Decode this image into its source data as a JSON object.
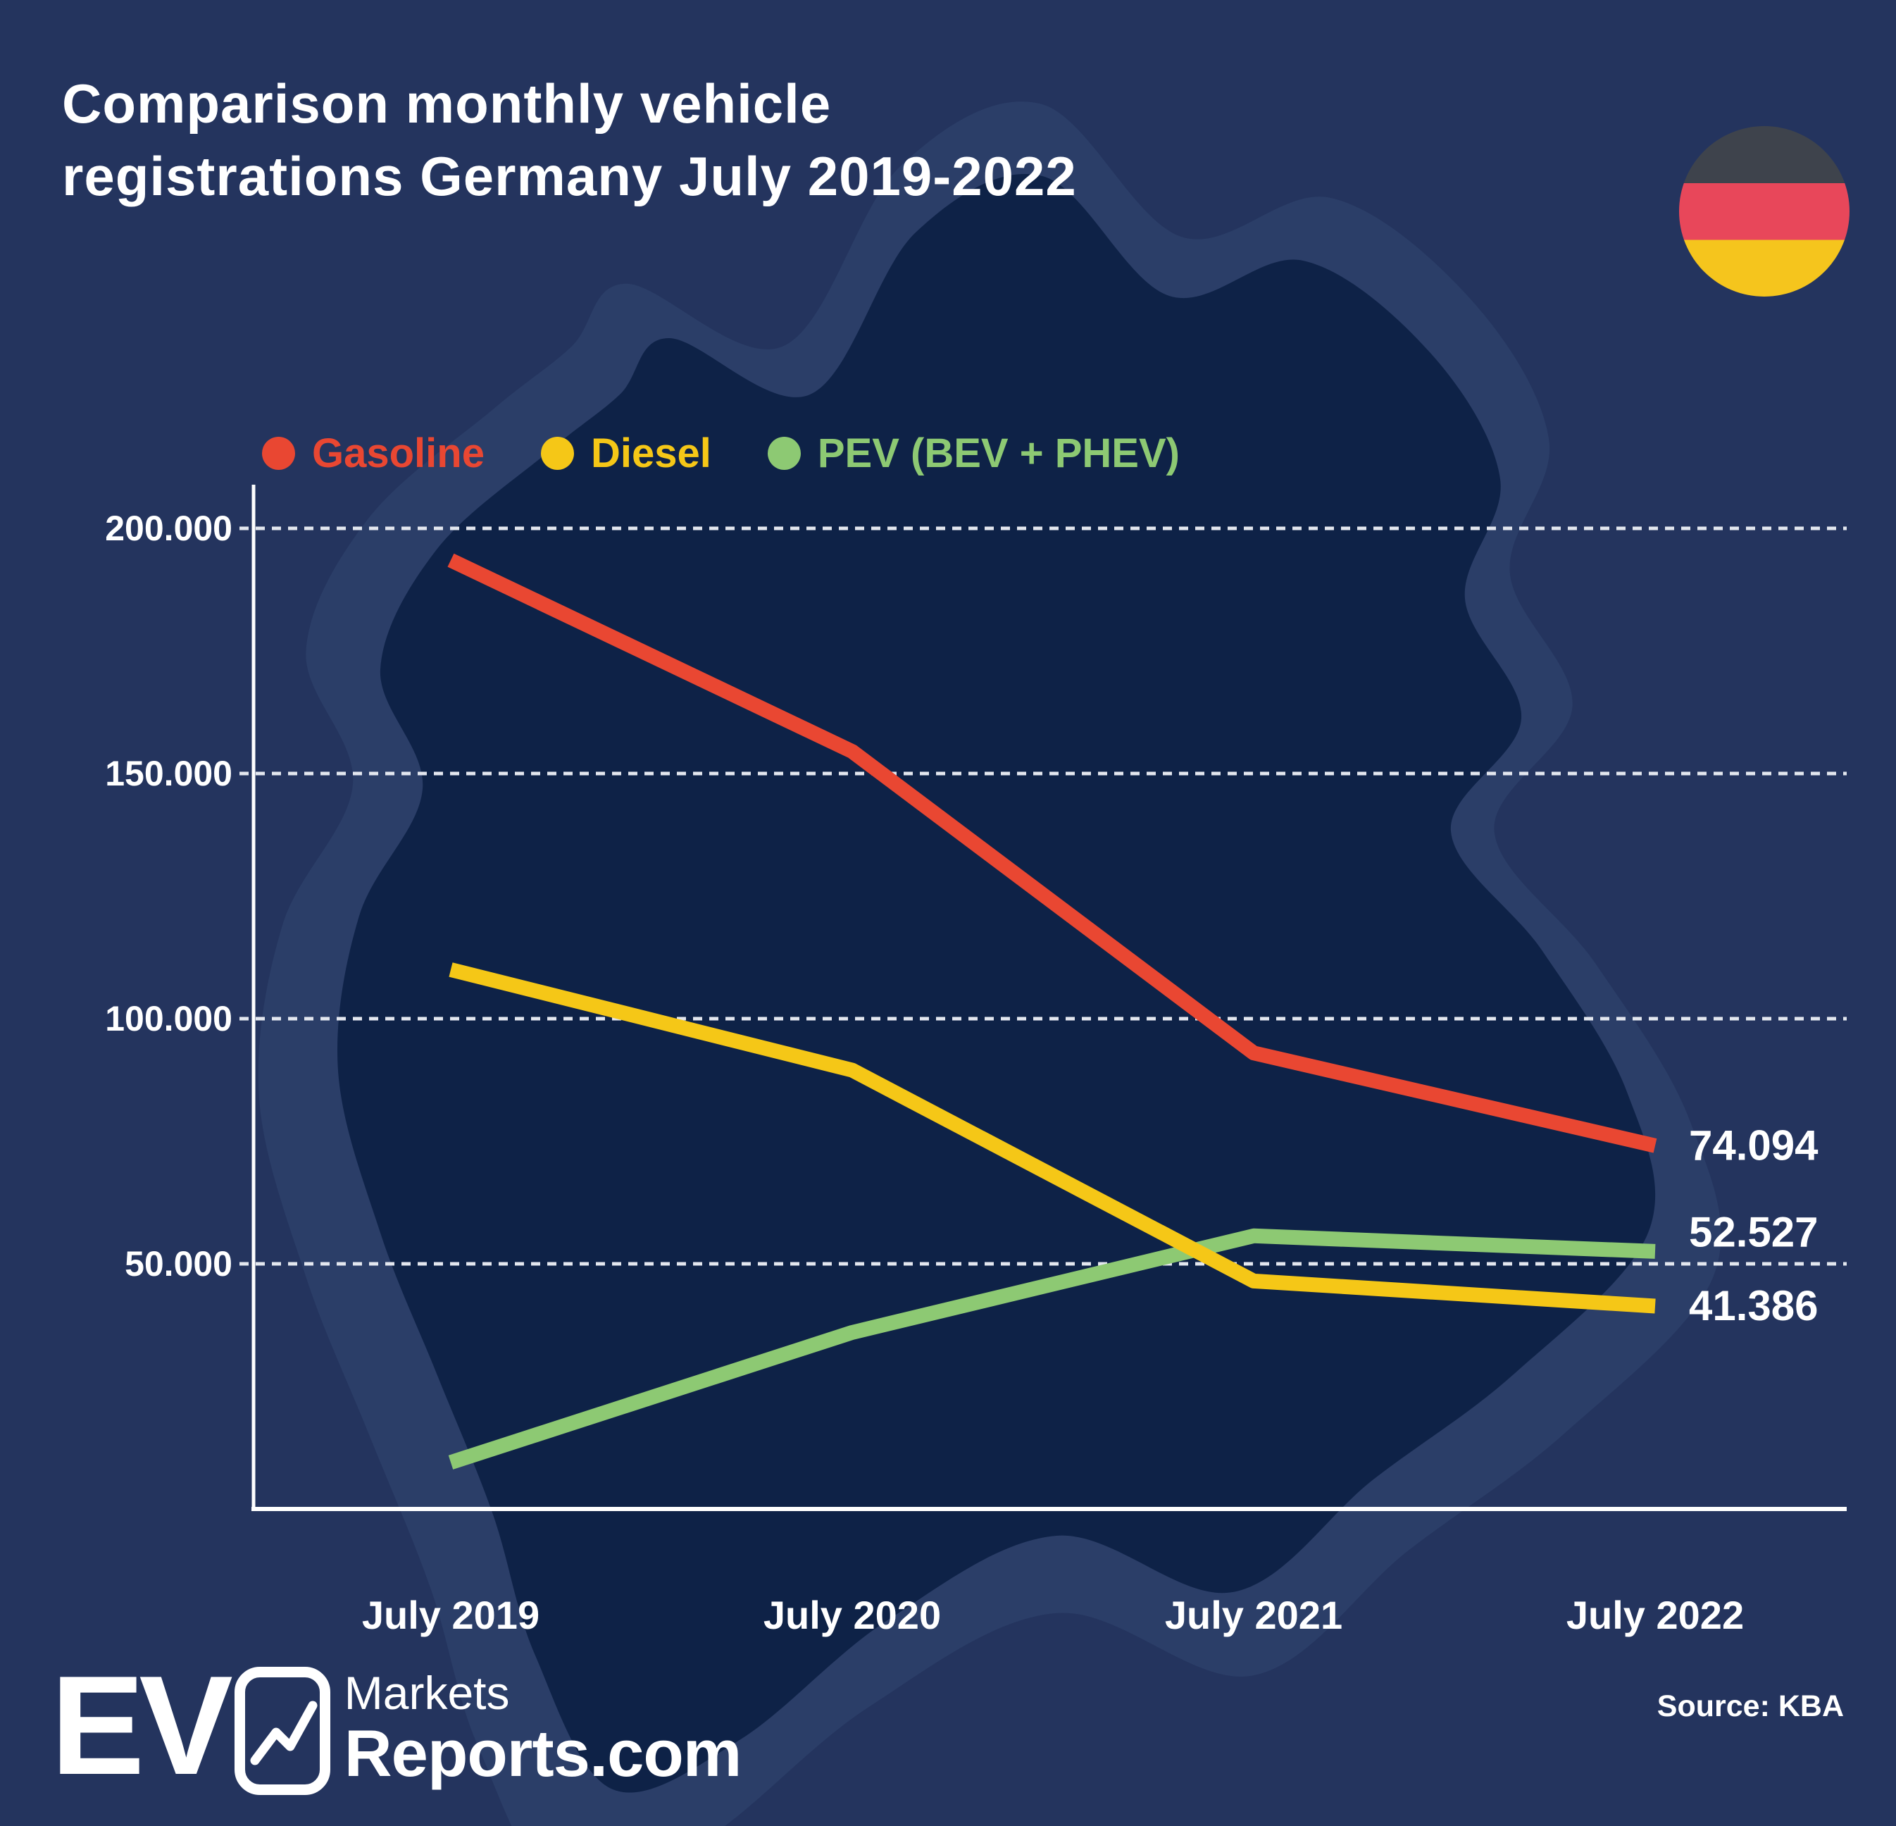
{
  "title": {
    "line1": "Comparison monthly vehicle",
    "line2": "registrations Germany July 2019-2022"
  },
  "flag": {
    "country": "Germany",
    "band_colors": [
      "#3E434C",
      "#E8475A",
      "#F5C51D"
    ]
  },
  "legend": {
    "items": [
      {
        "label": "Gasoline",
        "color": "#E94732"
      },
      {
        "label": "Diesel",
        "color": "#F5C717"
      },
      {
        "label": "PEV (BEV + PHEV)",
        "color": "#8DC973"
      }
    ]
  },
  "chart_data": {
    "type": "line",
    "title": "Comparison monthly vehicle registrations Germany July 2019-2022",
    "x_categories": [
      "July 2019",
      "July 2020",
      "July 2021",
      "July 2022"
    ],
    "y_axis": {
      "min": 0,
      "max": 215000,
      "grid": "dashed-horizontal",
      "grid_color": "#E3E7EF",
      "ticks": [
        {
          "value": 200000,
          "label": "200.000"
        },
        {
          "value": 150000,
          "label": "150.000"
        },
        {
          "value": 100000,
          "label": "100.000"
        },
        {
          "value": 50000,
          "label": "50.000"
        }
      ]
    },
    "series": [
      {
        "name": "PEV (BEV + PHEV)",
        "color": "#8DC973",
        "values": [
          9500,
          36000,
          55700,
          52527
        ],
        "end_label": "52.527"
      },
      {
        "name": "Diesel",
        "color": "#F5C717",
        "values": [
          110000,
          89500,
          46500,
          41386
        ],
        "end_label": "41.386"
      },
      {
        "name": "Gasoline",
        "color": "#E94732",
        "values": [
          193500,
          154500,
          93000,
          74094
        ],
        "end_label": "74.094"
      }
    ],
    "legend_position": "top"
  },
  "footer": {
    "logo": {
      "ev": "EV",
      "markets": "Markets",
      "reports": "Reports.com"
    },
    "source": "Source: KBA"
  },
  "colors": {
    "background": "#24345E",
    "map_dark": "#0E2247",
    "map_light": "#2B3E68",
    "axis": "#FFFFFF",
    "text": "#FFFFFF"
  }
}
